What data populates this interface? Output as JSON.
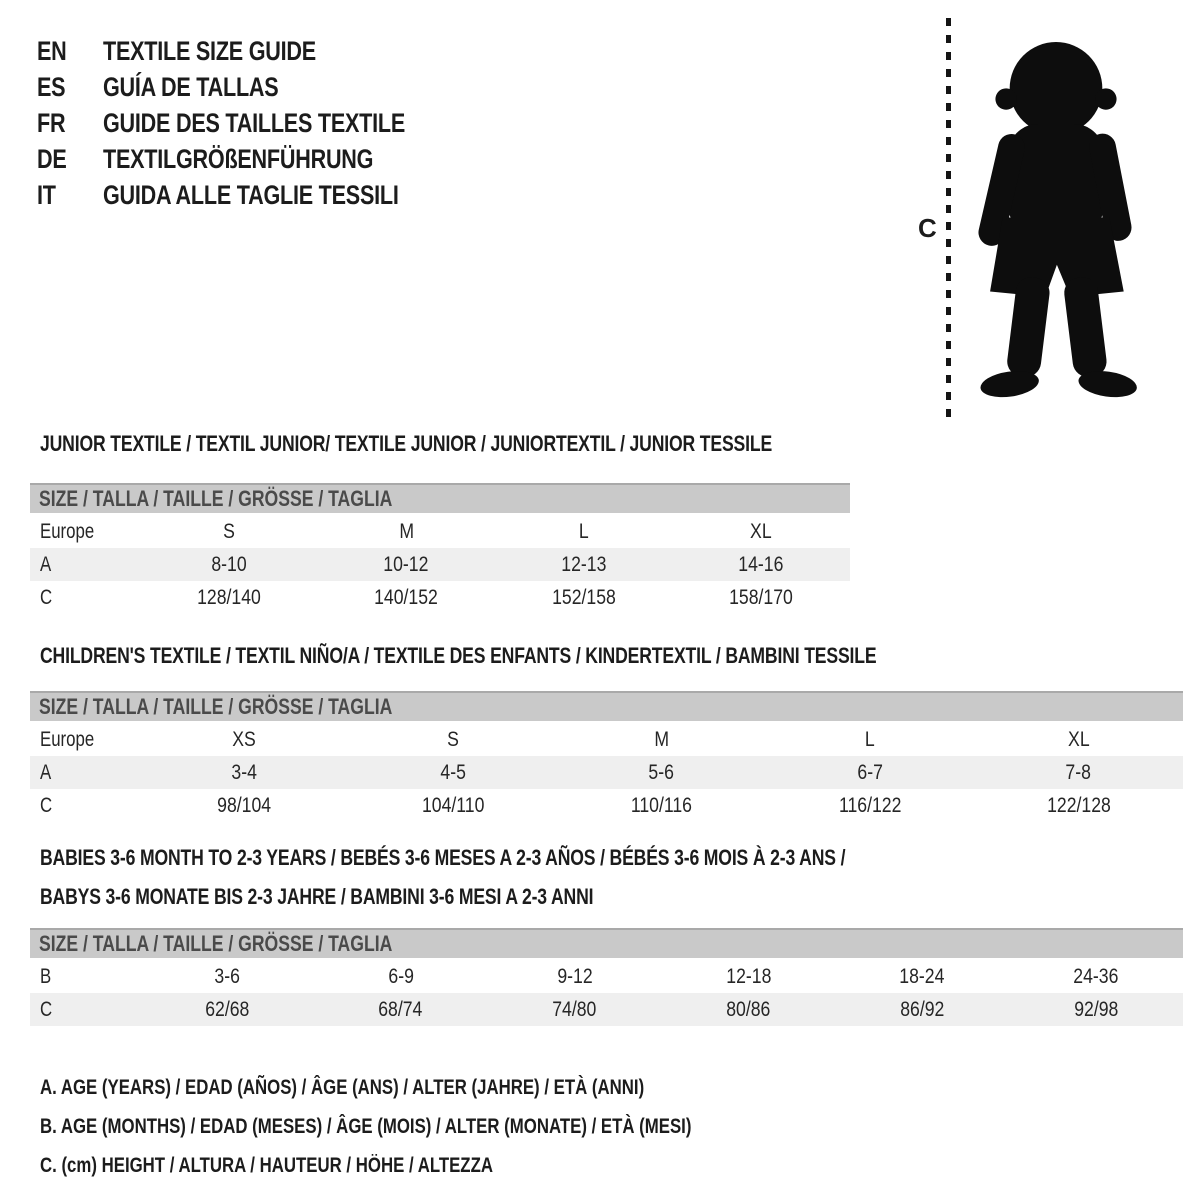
{
  "colors": {
    "text": "#1c1c1c",
    "table_header_bg": "#c9c9c9",
    "table_header_text": "#4a4a4a",
    "shaded_row_bg": "#efefef",
    "silhouette": "#0d0d0d"
  },
  "header": {
    "languages": [
      {
        "code": "EN",
        "title": "TEXTILE SIZE GUIDE"
      },
      {
        "code": "ES",
        "title": "GUÍA DE TALLAS"
      },
      {
        "code": "FR",
        "title": "GUIDE DES TAILLES TEXTILE"
      },
      {
        "code": "DE",
        "title": "TEXTILGRÖßENFÜHRUNG"
      },
      {
        "code": "IT",
        "title": "GUIDA ALLE TAGLIE TESSILI"
      }
    ]
  },
  "figure": {
    "icon": "toddler-silhouette-icon",
    "measure_label": "C"
  },
  "sections": [
    {
      "title_lines": [
        "JUNIOR TEXTILE / TEXTIL JUNIOR/ TEXTILE JUNIOR / JUNIORTEXTIL / JUNIOR TESSILE"
      ],
      "table": {
        "header": "SIZE / TALLA / TAILLE / GRÖSSE / TAGLIA",
        "rows": [
          {
            "label": "Europe",
            "shaded": false,
            "values": [
              "S",
              "M",
              "L",
              "XL"
            ]
          },
          {
            "label": "A",
            "shaded": true,
            "values": [
              "8-10",
              "10-12",
              "12-13",
              "14-16"
            ]
          },
          {
            "label": "C",
            "shaded": false,
            "values": [
              "128/140",
              "140/152",
              "152/158",
              "158/170"
            ]
          }
        ]
      }
    },
    {
      "title_lines": [
        "CHILDREN'S TEXTILE / TEXTIL NIÑO/A / TEXTILE DES ENFANTS / KINDERTEXTIL / BAMBINI TESSILE"
      ],
      "table": {
        "header": "SIZE / TALLA / TAILLE / GRÖSSE / TAGLIA",
        "rows": [
          {
            "label": "Europe",
            "shaded": false,
            "values": [
              "XS",
              "S",
              "M",
              "L",
              "XL"
            ]
          },
          {
            "label": "A",
            "shaded": true,
            "values": [
              "3-4",
              "4-5",
              "5-6",
              "6-7",
              "7-8"
            ]
          },
          {
            "label": "C",
            "shaded": false,
            "values": [
              "98/104",
              "104/110",
              "110/116",
              "116/122",
              "122/128"
            ]
          }
        ]
      }
    },
    {
      "title_lines": [
        "BABIES 3-6 MONTH TO 2-3 YEARS / BEBÉS 3-6 MESES A 2-3 AÑOS / BÉBÉS 3-6 MOIS À 2-3 ANS /",
        "BABYS 3-6 MONATE BIS 2-3 JAHRE / BAMBINI 3-6 MESI A 2-3 ANNI"
      ],
      "table": {
        "header": "SIZE / TALLA / TAILLE / GRÖSSE / TAGLIA",
        "rows": [
          {
            "label": "B",
            "shaded": false,
            "values": [
              "3-6",
              "6-9",
              "9-12",
              "12-18",
              "18-24",
              "24-36"
            ]
          },
          {
            "label": "C",
            "shaded": true,
            "values": [
              "62/68",
              "68/74",
              "74/80",
              "80/86",
              "86/92",
              "92/98"
            ]
          }
        ]
      }
    }
  ],
  "footnotes": [
    "A. AGE (YEARS) / EDAD (AÑOS) / ÂGE (ANS) / ALTER (JAHRE) / ETÀ (ANNI)",
    "B. AGE (MONTHS) / EDAD (MESES) / ÂGE (MOIS) / ALTER (MONATE) / ETÀ (MESI)",
    "C. (cm) HEIGHT / ALTURA / HAUTEUR / HÖHE / ALTEZZA"
  ]
}
